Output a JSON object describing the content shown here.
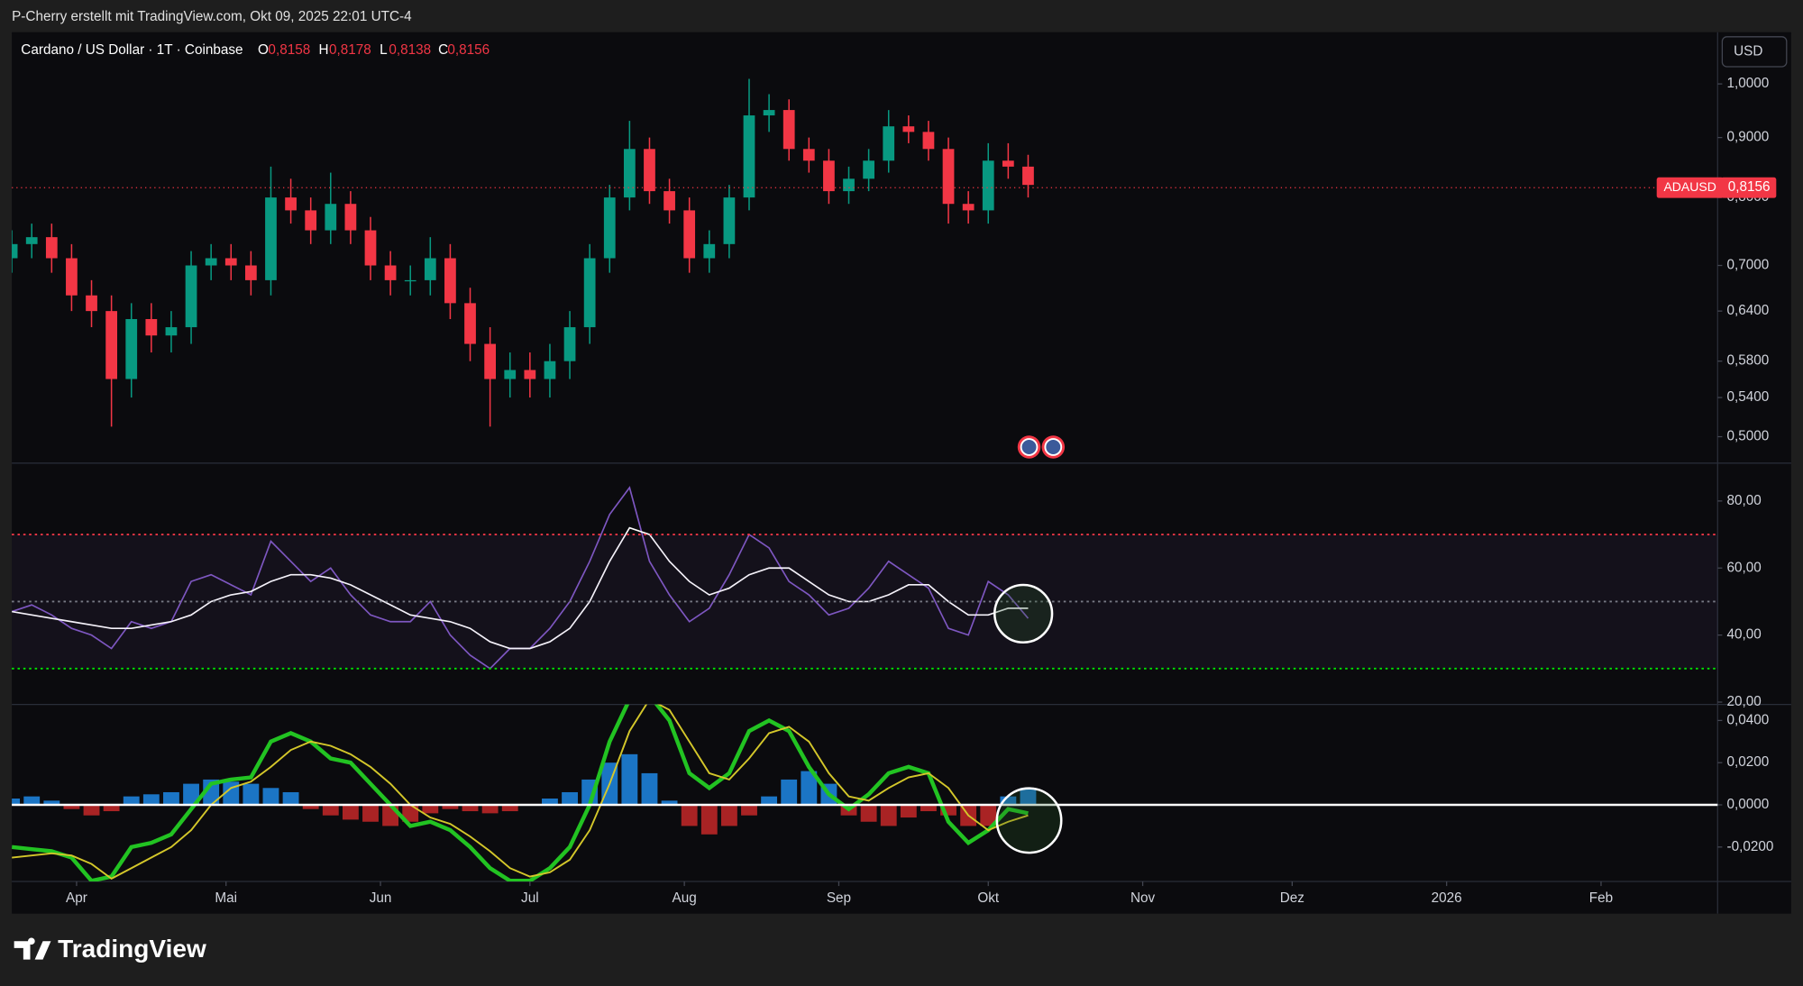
{
  "header": {
    "caption": "P-Cherry erstellt mit TradingView.com, Okt 09, 2025 22:01 UTC-4",
    "symbol": "Cardano / US Dollar · 1T · Coinbase",
    "ohlc": [
      {
        "key": "O",
        "value": "0,8158"
      },
      {
        "key": "H",
        "value": "0,8178"
      },
      {
        "key": "L",
        "value": "0,8138"
      },
      {
        "key": "C",
        "value": "0,8156"
      }
    ],
    "currency": "USD"
  },
  "footer": {
    "brand": "TradingView"
  },
  "chart_data": [
    {
      "type": "candlestick",
      "log_scale": true,
      "grid": false,
      "up_color": "#089981",
      "down_color": "#f23645",
      "open": [
        0.71,
        0.73,
        0.74,
        0.71,
        0.66,
        0.64,
        0.56,
        0.63,
        0.61,
        0.62,
        0.7,
        0.71,
        0.7,
        0.68,
        0.8,
        0.78,
        0.75,
        0.79,
        0.75,
        0.7,
        0.68,
        0.68,
        0.71,
        0.65,
        0.6,
        0.56,
        0.57,
        0.56,
        0.58,
        0.62,
        0.71,
        0.8,
        0.88,
        0.81,
        0.78,
        0.71,
        0.73,
        0.8,
        0.94,
        0.95,
        0.88,
        0.86,
        0.81,
        0.83,
        0.86,
        0.92,
        0.91,
        0.88,
        0.79,
        0.78,
        0.86,
        0.85
      ],
      "high": [
        0.75,
        0.76,
        0.76,
        0.73,
        0.68,
        0.66,
        0.65,
        0.65,
        0.64,
        0.72,
        0.73,
        0.73,
        0.72,
        0.85,
        0.83,
        0.8,
        0.84,
        0.81,
        0.77,
        0.72,
        0.7,
        0.74,
        0.73,
        0.67,
        0.62,
        0.59,
        0.59,
        0.6,
        0.64,
        0.73,
        0.82,
        0.93,
        0.9,
        0.83,
        0.8,
        0.75,
        0.82,
        1.01,
        0.98,
        0.97,
        0.9,
        0.88,
        0.85,
        0.88,
        0.95,
        0.94,
        0.93,
        0.9,
        0.81,
        0.89,
        0.89,
        0.87
      ],
      "low": [
        0.69,
        0.71,
        0.69,
        0.64,
        0.62,
        0.51,
        0.54,
        0.59,
        0.59,
        0.6,
        0.68,
        0.68,
        0.66,
        0.66,
        0.76,
        0.73,
        0.73,
        0.73,
        0.68,
        0.66,
        0.66,
        0.66,
        0.63,
        0.58,
        0.51,
        0.54,
        0.54,
        0.54,
        0.56,
        0.6,
        0.69,
        0.78,
        0.79,
        0.76,
        0.69,
        0.69,
        0.71,
        0.78,
        0.91,
        0.86,
        0.84,
        0.79,
        0.79,
        0.81,
        0.84,
        0.89,
        0.86,
        0.76,
        0.76,
        0.76,
        0.83,
        0.8
      ],
      "close": [
        0.73,
        0.74,
        0.71,
        0.66,
        0.64,
        0.56,
        0.63,
        0.61,
        0.62,
        0.7,
        0.71,
        0.7,
        0.68,
        0.8,
        0.78,
        0.75,
        0.79,
        0.75,
        0.7,
        0.68,
        0.68,
        0.71,
        0.65,
        0.6,
        0.56,
        0.57,
        0.56,
        0.58,
        0.62,
        0.71,
        0.8,
        0.88,
        0.81,
        0.78,
        0.71,
        0.73,
        0.8,
        0.94,
        0.95,
        0.88,
        0.86,
        0.81,
        0.83,
        0.86,
        0.92,
        0.91,
        0.88,
        0.79,
        0.78,
        0.86,
        0.85,
        0.82
      ],
      "xlim": [
        0,
        85.6
      ],
      "xticks": [
        {
          "value": 3.25,
          "label": "Apr"
        },
        {
          "value": 10.75,
          "label": "Mai"
        },
        {
          "value": 18.5,
          "label": "Jun"
        },
        {
          "value": 26,
          "label": "Jul"
        },
        {
          "value": 33.75,
          "label": "Aug"
        },
        {
          "value": 41.5,
          "label": "Sep"
        },
        {
          "value": 49,
          "label": "Okt"
        },
        {
          "value": 56.75,
          "label": "Nov"
        },
        {
          "value": 64.25,
          "label": "Dez"
        },
        {
          "value": 72,
          "label": "2026"
        },
        {
          "value": 79.75,
          "label": "Feb"
        }
      ],
      "ylim": [
        0.4747,
        1.107
      ],
      "yticks": [
        {
          "value": 1,
          "label": "1,0000"
        },
        {
          "value": 0.9,
          "label": "0,9000"
        },
        {
          "value": 0.8,
          "label": "0,8000"
        },
        {
          "value": 0.7,
          "label": "0,7000"
        },
        {
          "value": 0.64,
          "label": "0,6400"
        },
        {
          "value": 0.58,
          "label": "0,5800"
        },
        {
          "value": 0.54,
          "label": "0,5400"
        },
        {
          "value": 0.5,
          "label": "0,5000"
        }
      ],
      "last_price": {
        "value": 0.8156,
        "label": "0,8156"
      },
      "symbol_tag": "ADAUSD"
    },
    {
      "type": "line",
      "ylim": [
        19.3,
        91.3
      ],
      "yticks": [
        {
          "value": 80,
          "label": "80,00"
        },
        {
          "value": 60,
          "label": "60,00"
        },
        {
          "value": 40,
          "label": "40,00"
        },
        {
          "value": 20,
          "label": "20,00"
        }
      ],
      "levels": [
        {
          "value": 70,
          "color": "#f23645"
        },
        {
          "value": 50,
          "color": "#787b86"
        },
        {
          "value": 30,
          "color": "#00e600"
        }
      ],
      "band_color": "#7e57c2",
      "series": [
        {
          "color": "#7e57c2",
          "values": [
            47,
            49,
            46,
            42,
            40,
            36,
            44,
            42,
            44,
            56,
            58,
            55,
            52,
            68,
            62,
            56,
            60,
            52,
            46,
            44,
            44,
            50,
            40,
            34,
            30,
            36,
            36,
            42,
            50,
            62,
            76,
            84,
            62,
            52,
            44,
            48,
            58,
            70,
            66,
            56,
            52,
            46,
            48,
            54,
            62,
            58,
            54,
            42,
            40,
            56,
            52,
            45
          ]
        },
        {
          "color": "#ffffff",
          "values": [
            47,
            46,
            45,
            44,
            43,
            42,
            42,
            43,
            44,
            46,
            50,
            52,
            53,
            56,
            58,
            58,
            57,
            55,
            52,
            49,
            46,
            45,
            44,
            42,
            38,
            36,
            36,
            38,
            42,
            50,
            62,
            72,
            70,
            62,
            56,
            52,
            54,
            58,
            60,
            60,
            56,
            52,
            50,
            50,
            52,
            55,
            55,
            50,
            46,
            46,
            48,
            48
          ]
        }
      ]
    },
    {
      "type": "macd",
      "ylim": [
        -0.0363,
        0.0476
      ],
      "yticks": [
        {
          "value": 0.04,
          "label": "0,0400"
        },
        {
          "value": 0.02,
          "label": "0,0200"
        },
        {
          "value": 0,
          "label": "0,0000"
        },
        {
          "value": -0.02,
          "label": "-0,0200"
        }
      ],
      "levels": [
        {
          "value": 0,
          "color": "#ffffff"
        }
      ],
      "hist_colors": {
        "up": "#1e88e5",
        "down": "#c62828"
      },
      "histogram": [
        0.003,
        0.004,
        0.002,
        -0.002,
        -0.005,
        -0.003,
        0.004,
        0.005,
        0.006,
        0.01,
        0.012,
        0.011,
        0.01,
        0.008,
        0.006,
        -0.002,
        -0.005,
        -0.007,
        -0.008,
        -0.01,
        -0.008,
        -0.004,
        -0.002,
        -0.003,
        -0.004,
        -0.003,
        0.0,
        0.003,
        0.006,
        0.012,
        0.02,
        0.024,
        0.015,
        0.002,
        -0.01,
        -0.014,
        -0.01,
        -0.005,
        0.004,
        0.012,
        0.016,
        0.01,
        -0.005,
        -0.008,
        -0.01,
        -0.006,
        -0.003,
        -0.005,
        -0.01,
        -0.01,
        0.004,
        0.008
      ],
      "series": [
        {
          "color": "#22c322",
          "values": [
            -0.02,
            -0.021,
            -0.022,
            -0.025,
            -0.036,
            -0.034,
            -0.02,
            -0.018,
            -0.014,
            -0.002,
            0.01,
            0.012,
            0.013,
            0.03,
            0.034,
            0.03,
            0.022,
            0.02,
            0.01,
            0.0,
            -0.01,
            -0.008,
            -0.012,
            -0.02,
            -0.03,
            -0.036,
            -0.036,
            -0.03,
            -0.02,
            0.0,
            0.03,
            0.05,
            0.052,
            0.04,
            0.015,
            0.008,
            0.015,
            0.035,
            0.04,
            0.035,
            0.018,
            0.005,
            -0.002,
            0.005,
            0.015,
            0.018,
            0.015,
            -0.008,
            -0.018,
            -0.012,
            -0.002,
            -0.004
          ]
        },
        {
          "color": "#d4c72a",
          "values": [
            -0.025,
            -0.024,
            -0.023,
            -0.024,
            -0.028,
            -0.035,
            -0.03,
            -0.025,
            -0.02,
            -0.012,
            0.0,
            0.008,
            0.011,
            0.018,
            0.026,
            0.03,
            0.028,
            0.024,
            0.018,
            0.01,
            0.0,
            -0.006,
            -0.009,
            -0.015,
            -0.022,
            -0.03,
            -0.034,
            -0.032,
            -0.026,
            -0.012,
            0.01,
            0.035,
            0.05,
            0.045,
            0.03,
            0.015,
            0.012,
            0.022,
            0.034,
            0.037,
            0.03,
            0.015,
            0.004,
            0.002,
            0.008,
            0.013,
            0.015,
            0.008,
            -0.005,
            -0.012,
            -0.008,
            -0.005
          ]
        }
      ]
    }
  ]
}
